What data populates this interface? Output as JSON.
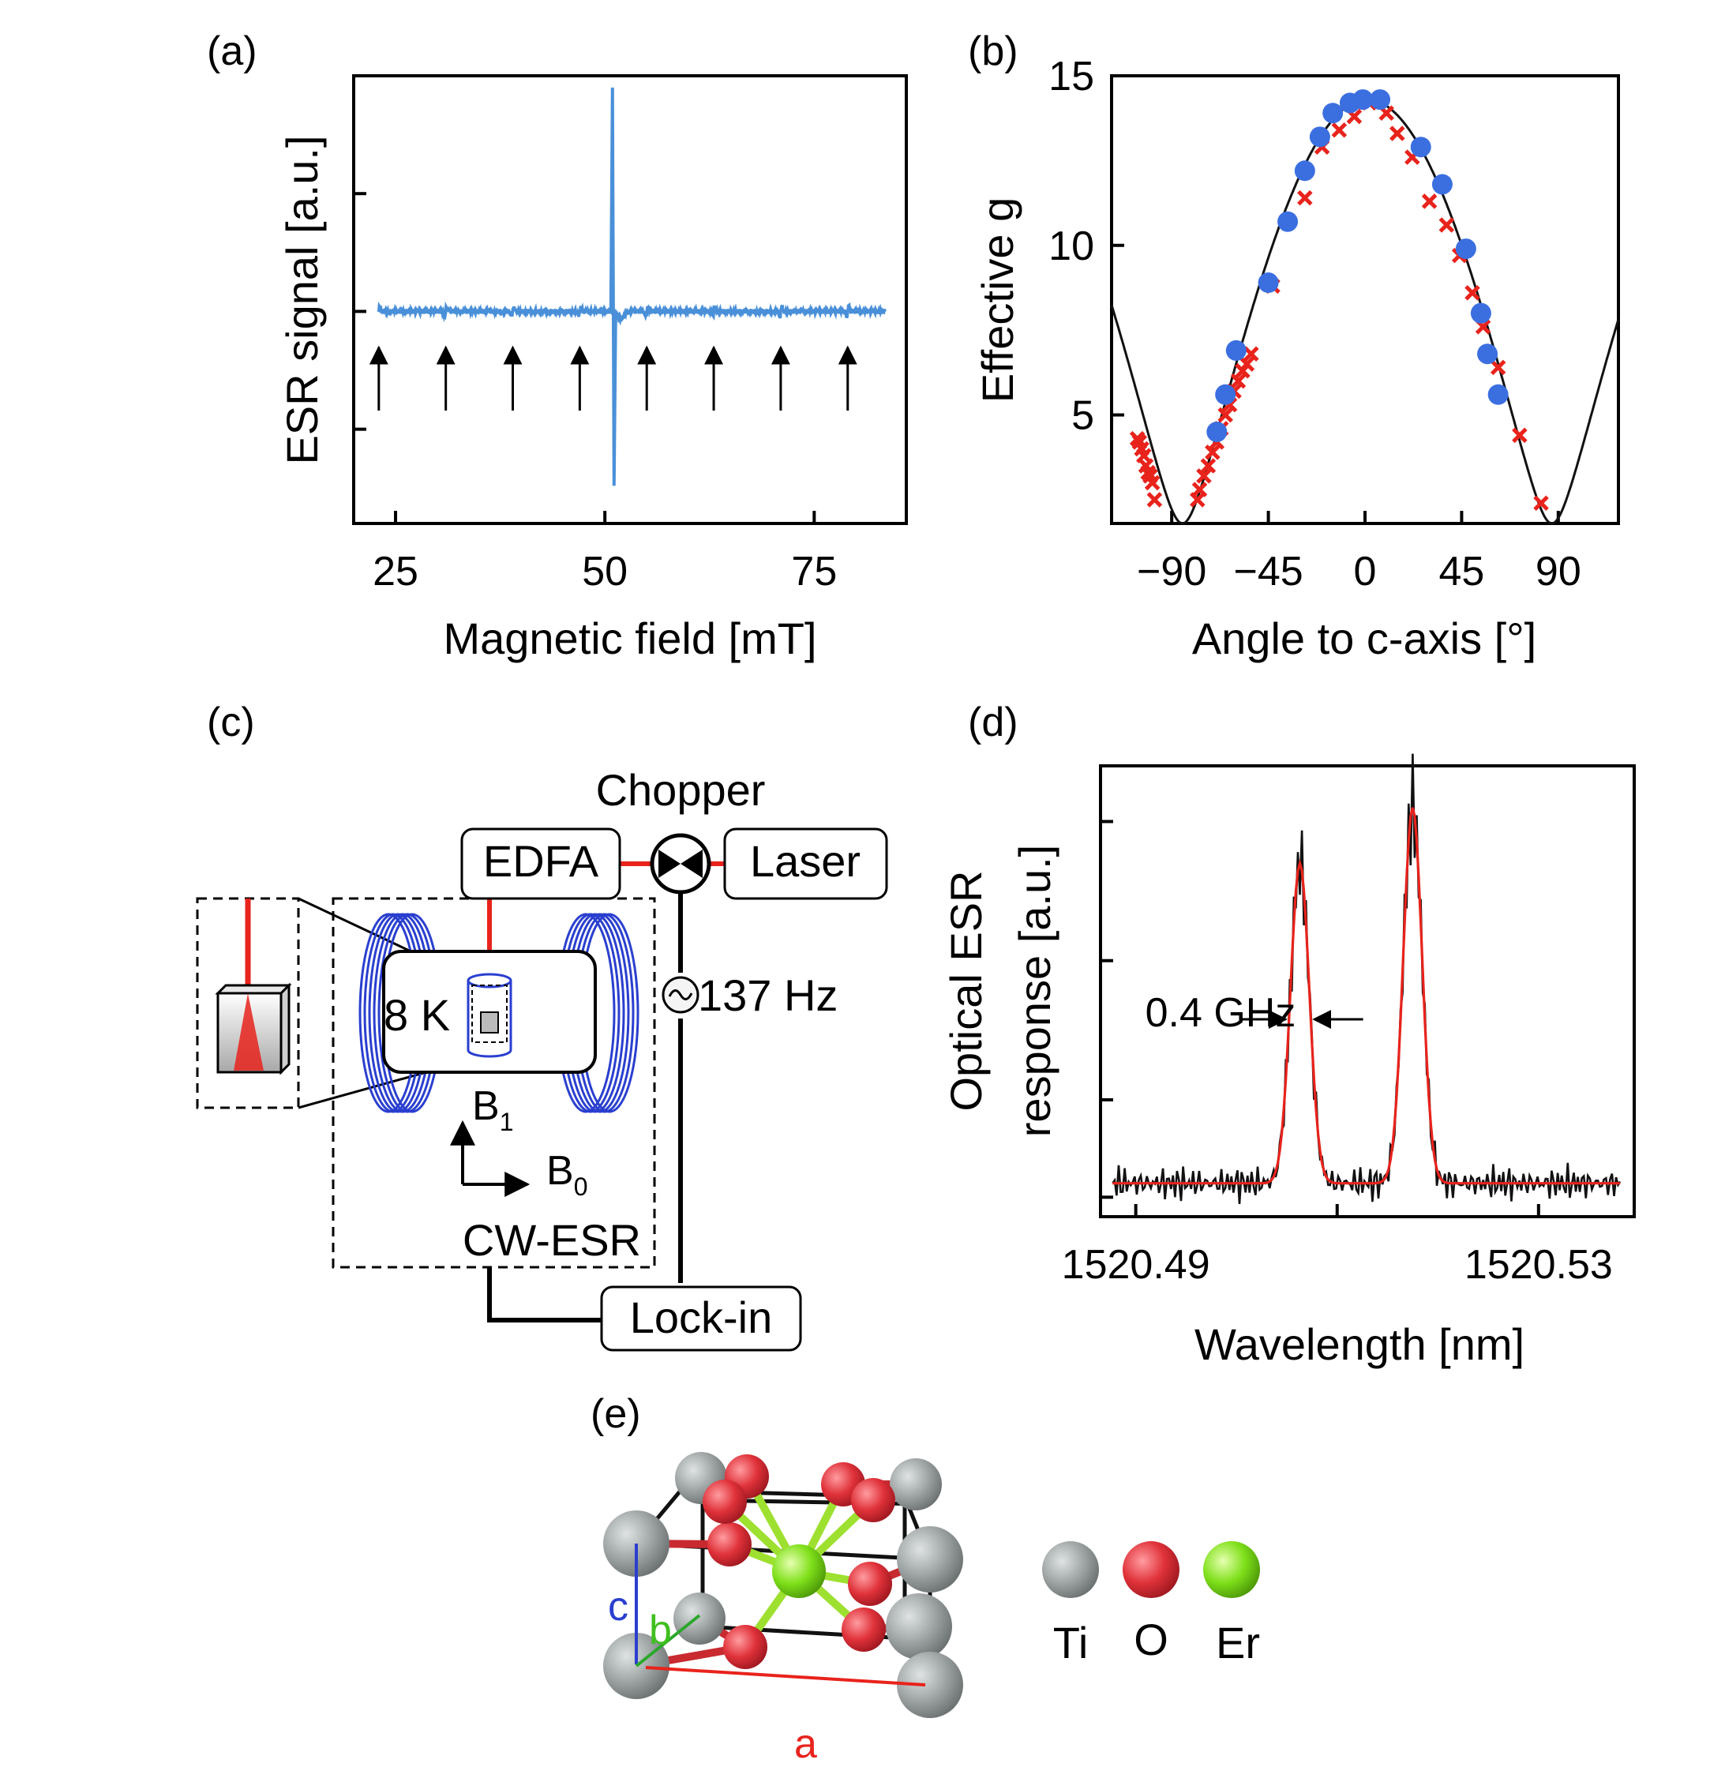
{
  "panels": {
    "a": {
      "label": "(a)"
    },
    "b": {
      "label": "(b)"
    },
    "c": {
      "label": "(c)"
    },
    "d": {
      "label": "(d)"
    },
    "e": {
      "label": "(e)"
    }
  },
  "colors": {
    "esr_trace": "#4a90d9",
    "marker_blue": "#3b6fe0",
    "marker_red": "#e8231c",
    "fit_red": "#e8231c",
    "coil_blue": "#2a3fcf",
    "ti_gray": "#9aa0a0",
    "o_red": "#e0323a",
    "er_green": "#7fe01a"
  },
  "chart_data": [
    {
      "id": "a",
      "type": "line",
      "title": "",
      "xlabel": "Magnetic field [mT]",
      "ylabel": "ESR signal [a.u.]",
      "xlim": [
        20,
        86
      ],
      "ylim": [
        -0.9,
        1.0
      ],
      "xticks": [
        25,
        50,
        75
      ],
      "yticks": [
        -0.5,
        0,
        0.5
      ],
      "baseline_x_range": [
        23,
        83.5
      ],
      "main_line_x": 51.0,
      "main_line_y": [
        -0.74,
        0.95
      ],
      "hyperfine_lines_x": [
        23,
        31,
        39,
        47,
        55,
        63,
        71,
        79
      ],
      "arrow_x": [
        23,
        31,
        39,
        47,
        55,
        63,
        71,
        79
      ]
    },
    {
      "id": "b",
      "type": "scatter",
      "title": "",
      "xlabel": "Angle to c-axis [°]",
      "ylabel": "Effective g",
      "xlim": [
        -118,
        118
      ],
      "ylim": [
        1.8,
        15
      ],
      "xticks": [
        -90,
        -45,
        0,
        45,
        90
      ],
      "xtick_labels": [
        "−90",
        "−45",
        "0",
        "45",
        "90"
      ],
      "yticks": [
        5,
        10,
        15
      ],
      "fit": {
        "name": "fit",
        "g_parallel": 14.3,
        "g_perp": 1.8,
        "period_deg": 172
      },
      "series": [
        {
          "name": "blue",
          "marker": "circle",
          "x": [
            -69,
            -65,
            -60,
            -45,
            -36,
            -28,
            -21,
            -15,
            -7,
            -1,
            7,
            26,
            36,
            47,
            54,
            57,
            62
          ],
          "y": [
            4.5,
            5.6,
            6.9,
            8.9,
            10.7,
            12.2,
            13.2,
            13.9,
            14.2,
            14.3,
            14.3,
            12.9,
            11.8,
            9.9,
            8.0,
            6.8,
            5.6
          ]
        },
        {
          "name": "red",
          "marker": "x",
          "x": [
            -106,
            -105,
            -104,
            -103,
            -102,
            -101,
            -100,
            -99,
            -98,
            -78,
            -77,
            -75,
            -73,
            -71,
            -69,
            -67,
            -65,
            -63,
            -61,
            -59,
            -57,
            -55,
            -53,
            -43,
            -28,
            -20,
            -12,
            -5,
            2,
            10,
            15,
            22,
            30,
            38,
            44,
            50,
            55,
            62,
            72,
            82
          ],
          "y": [
            4.3,
            4.2,
            4.0,
            3.8,
            3.5,
            3.3,
            3.2,
            3.0,
            2.5,
            2.5,
            2.8,
            3.2,
            3.5,
            3.9,
            4.2,
            4.6,
            5.0,
            5.3,
            5.7,
            6.0,
            6.3,
            6.5,
            6.8,
            8.8,
            11.4,
            12.9,
            13.4,
            13.8,
            14.2,
            13.9,
            13.3,
            12.6,
            11.3,
            10.6,
            9.7,
            8.6,
            7.6,
            6.4,
            4.4,
            2.4
          ]
        }
      ]
    },
    {
      "id": "d",
      "type": "line",
      "title": "",
      "xlabel": "Wavelength [nm]",
      "ylabel_line1": "Optical ESR",
      "ylabel_line2": "response [a.u.]",
      "xlim": [
        1520.4865,
        1520.5395
      ],
      "ylim": [
        -0.12,
        1.5
      ],
      "xticks": [
        1520.49,
        1520.51,
        1520.53
      ],
      "xtick_labels": [
        "1520.49",
        "",
        "1520.53"
      ],
      "yticks": [
        -0.05,
        0.3,
        0.8,
        1.3
      ],
      "peaks_center_nm": [
        1520.5063,
        1520.5175
      ],
      "peak_fwhm_nm": 0.0022,
      "peak_heights": [
        1.15,
        1.35
      ],
      "annotation": "0.4 GHz"
    }
  ],
  "diagram_c": {
    "chopper": "Chopper",
    "edfa": "EDFA",
    "laser": "Laser",
    "frequency": "137 Hz",
    "temperature": "8 K",
    "b1": "B",
    "b1_sub": "1",
    "b0": "B",
    "b0_sub": "0",
    "cwesr": "CW-ESR",
    "lockin": "Lock-in"
  },
  "crystal_e": {
    "axis_a": "a",
    "axis_b": "b",
    "axis_c": "c",
    "legend": [
      {
        "label": "Ti",
        "color": "#9aa0a0"
      },
      {
        "label": "O",
        "color": "#e0323a"
      },
      {
        "label": "Er",
        "color": "#7fe01a"
      }
    ]
  }
}
